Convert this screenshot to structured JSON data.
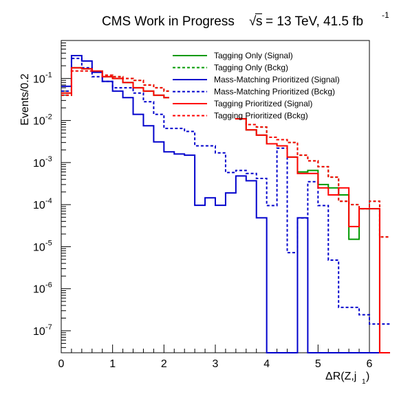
{
  "chart_data": {
    "type": "line",
    "title": "CMS Work in Progress",
    "subtitle": "= 13 TeV, 41.5 fb",
    "title_sqrt_symbol": "√",
    "title_s_symbol": "s",
    "title_superscript": "-1",
    "xlabel": "ΔR(Z,j",
    "xlabel_subscript": "1",
    "xlabel_close": ")",
    "ylabel": "Events/0.2",
    "xlim": [
      0,
      6
    ],
    "ylim": [
      3e-08,
      0.8
    ],
    "yscale": "log",
    "x_ticks": [
      0,
      1,
      2,
      3,
      4,
      5,
      6
    ],
    "x_tick_labels": [
      "0",
      "1",
      "2",
      "3",
      "4",
      "5",
      "6"
    ],
    "y_ticks": [
      1e-07,
      1e-06,
      1e-05,
      0.0001,
      0.001,
      0.01,
      0.1
    ],
    "y_tick_bases": [
      "10",
      "10",
      "10",
      "10",
      "10",
      "10",
      "10"
    ],
    "y_tick_exponents": [
      "-7",
      "-6",
      "-5",
      "-4",
      "-3",
      "-2",
      "-1"
    ],
    "bin_width": 0.2,
    "bin_edges_start": 0,
    "legend_position": "top-right",
    "grid": false,
    "series": [
      {
        "name": "Tagging Only (Signal)",
        "color": "#009900",
        "dashed": false,
        "values": [
          0.045,
          0.18,
          0.17,
          0.15,
          0.11,
          0.1,
          0.08,
          0.06,
          0.05,
          0.04,
          0.035,
          0.03,
          0.025,
          0.022,
          0.018,
          0.016,
          0.014,
          0.011,
          0.006,
          0.0045,
          0.0028,
          0.0025,
          0.00135,
          0.0006,
          0.00065,
          0.0003,
          0.00025,
          0.00017,
          1.5e-05,
          8e-05,
          8e-05,
          0
        ]
      },
      {
        "name": "Tagging Only (Bckg)",
        "color": "#009900",
        "dashed": true,
        "values": [
          0.04,
          0.15,
          0.15,
          0.15,
          0.12,
          0.11,
          0.1,
          0.09,
          0.07,
          0.06,
          0.05,
          0.04,
          0.035,
          0.03,
          0.025,
          0.02,
          0.016,
          0.012,
          0.008,
          0.007,
          0.004,
          0.0035,
          0.003,
          0.0015,
          0.0011,
          0.0008,
          0.00045,
          0.00012,
          0.0001,
          8e-05,
          0.00012,
          1.7e-05
        ]
      },
      {
        "name": "Mass-Matching Prioritized (Signal)",
        "color": "#0000cc",
        "dashed": false,
        "values": [
          0.065,
          0.35,
          0.26,
          0.14,
          0.085,
          0.05,
          0.035,
          0.014,
          0.0075,
          0.0031,
          0.0018,
          0.0016,
          0.0015,
          9.66e-05,
          0.000145,
          9.66e-05,
          0.00019,
          0.00048,
          0.00037,
          4.85e-05,
          0,
          0,
          0,
          4.85e-05,
          0,
          0,
          0,
          0,
          0,
          0,
          0,
          0
        ]
      },
      {
        "name": "Mass-Matching Prioritized (Bckg)",
        "color": "#0000cc",
        "dashed": true,
        "values": [
          0.05,
          0.3,
          0.18,
          0.11,
          0.085,
          0.06,
          0.06,
          0.045,
          0.028,
          0.014,
          0.0065,
          0.0065,
          0.0055,
          0.0025,
          0.0025,
          0.0017,
          0.00058,
          0.00065,
          0.00055,
          0.00042,
          9.5e-05,
          0.0022,
          7.2e-06,
          4.8e-05,
          0.00035,
          9.5e-05,
          4.8e-06,
          3.6e-07,
          3.6e-07,
          2.4e-07,
          1.45e-07,
          1.45e-07
        ]
      },
      {
        "name": "Tagging Prioritized (Signal)",
        "color": "#ff0000",
        "dashed": false,
        "values": [
          0.045,
          0.18,
          0.17,
          0.15,
          0.11,
          0.1,
          0.08,
          0.06,
          0.05,
          0.04,
          0.035,
          0.03,
          0.025,
          0.022,
          0.018,
          0.016,
          0.014,
          0.011,
          0.006,
          0.0045,
          0.0028,
          0.0025,
          0.00135,
          0.00055,
          0.00055,
          0.00025,
          0.00017,
          0.00025,
          3e-05,
          8e-05,
          8e-05,
          0
        ]
      },
      {
        "name": "Tagging Prioritized (Bckg)",
        "color": "#ff0000",
        "dashed": true,
        "values": [
          0.04,
          0.15,
          0.15,
          0.15,
          0.12,
          0.11,
          0.1,
          0.09,
          0.07,
          0.06,
          0.05,
          0.04,
          0.035,
          0.03,
          0.025,
          0.02,
          0.016,
          0.012,
          0.008,
          0.007,
          0.004,
          0.0035,
          0.003,
          0.0015,
          0.0011,
          0.0008,
          0.00045,
          0.00012,
          0.0001,
          8e-05,
          0.00012,
          1.7e-05
        ]
      }
    ]
  }
}
